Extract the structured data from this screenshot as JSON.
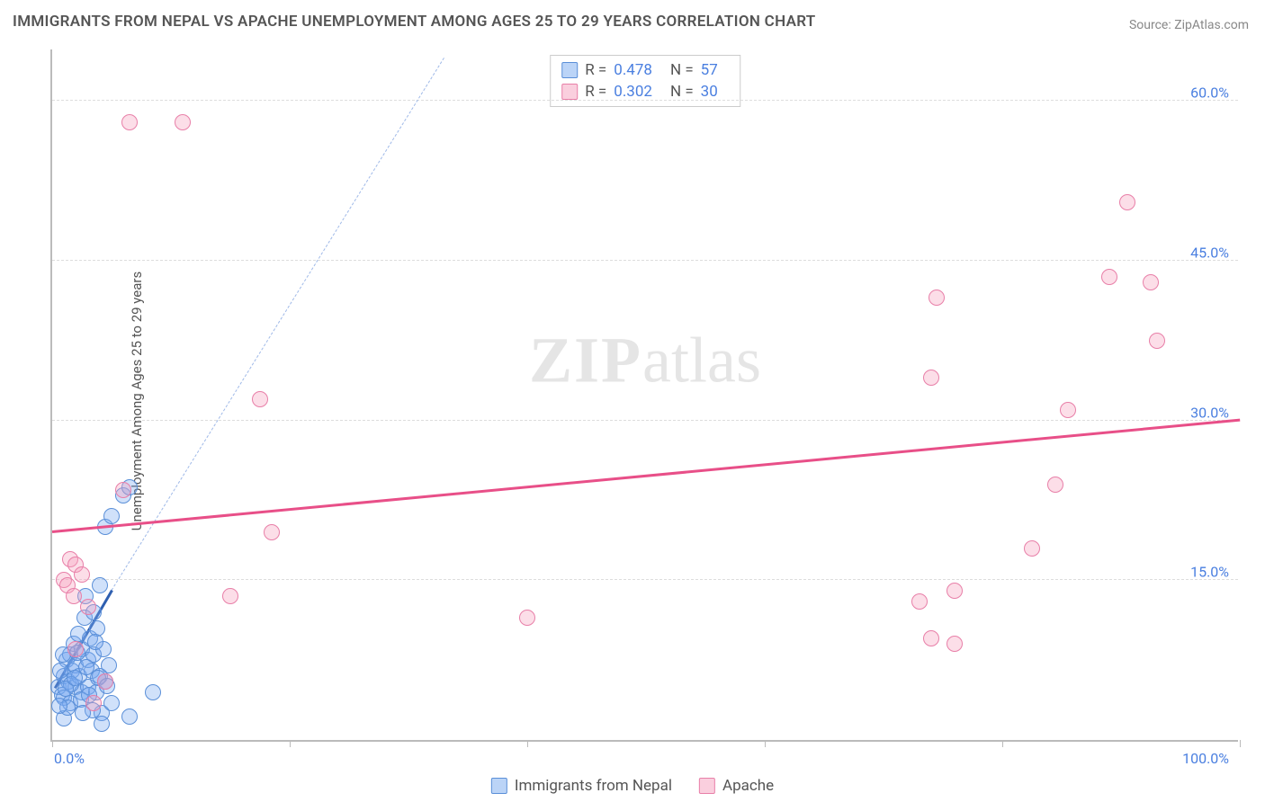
{
  "chart": {
    "type": "scatter",
    "title": "IMMIGRANTS FROM NEPAL VS APACHE UNEMPLOYMENT AMONG AGES 25 TO 29 YEARS CORRELATION CHART",
    "source": "Source: ZipAtlas.com",
    "y_label": "Unemployment Among Ages 25 to 29 years",
    "watermark": {
      "zip": "ZIP",
      "atlas": "atlas"
    },
    "xlim": [
      0,
      100
    ],
    "ylim": [
      0,
      65
    ],
    "x_ticks": [
      0,
      20,
      40,
      60,
      80,
      100
    ],
    "x_tick_labels": {
      "left": "0.0%",
      "right": "100.0%"
    },
    "y_ticks": [
      15,
      30,
      45,
      60
    ],
    "y_tick_labels": [
      "15.0%",
      "30.0%",
      "45.0%",
      "60.0%"
    ],
    "background_color": "#ffffff",
    "grid_color": "#dddddd",
    "axis_color": "#bbbbbb",
    "tick_label_color": "#4a7fe0",
    "title_color": "#555555",
    "series": [
      {
        "name": "Immigrants from Nepal",
        "marker_color": "#5a8fd8",
        "marker_fill": "rgba(120,170,240,0.35)",
        "reg_color": "#2f5fb0",
        "reg_dash_color": "#9fb9e8",
        "R": "0.478",
        "N": "57",
        "reg_solid": {
          "x1": 0.2,
          "y1": 4.8,
          "x2": 5.0,
          "y2": 14.0
        },
        "reg_dash": {
          "x1": 5.0,
          "y1": 14.0,
          "x2": 33.0,
          "y2": 64.0
        },
        "points": [
          [
            0.5,
            5.0
          ],
          [
            0.8,
            4.2
          ],
          [
            1.0,
            6.0
          ],
          [
            1.0,
            4.0
          ],
          [
            1.2,
            7.5
          ],
          [
            1.4,
            5.5
          ],
          [
            1.5,
            8.0
          ],
          [
            1.5,
            3.5
          ],
          [
            1.7,
            6.5
          ],
          [
            1.8,
            9.0
          ],
          [
            2.0,
            7.0
          ],
          [
            2.0,
            5.0
          ],
          [
            2.2,
            10.0
          ],
          [
            2.3,
            6.0
          ],
          [
            2.5,
            8.5
          ],
          [
            2.5,
            4.5
          ],
          [
            2.7,
            11.5
          ],
          [
            2.8,
            13.5
          ],
          [
            3.0,
            7.5
          ],
          [
            3.0,
            5.0
          ],
          [
            3.2,
            9.5
          ],
          [
            3.3,
            6.5
          ],
          [
            3.5,
            12.0
          ],
          [
            3.5,
            8.0
          ],
          [
            3.7,
            4.5
          ],
          [
            3.8,
            10.5
          ],
          [
            4.0,
            14.5
          ],
          [
            4.0,
            6.0
          ],
          [
            4.2,
            2.5
          ],
          [
            4.3,
            8.5
          ],
          [
            4.5,
            20.0
          ],
          [
            4.5,
            5.5
          ],
          [
            4.8,
            7.0
          ],
          [
            5.0,
            21.0
          ],
          [
            5.0,
            3.5
          ],
          [
            1.0,
            2.0
          ],
          [
            1.3,
            3.0
          ],
          [
            0.7,
            6.5
          ],
          [
            2.4,
            3.8
          ],
          [
            3.1,
            4.2
          ],
          [
            0.9,
            8.0
          ],
          [
            1.6,
            5.2
          ],
          [
            2.9,
            6.8
          ],
          [
            3.6,
            9.2
          ],
          [
            1.1,
            4.8
          ],
          [
            0.6,
            3.2
          ],
          [
            2.1,
            8.2
          ],
          [
            1.9,
            5.8
          ],
          [
            3.9,
            5.8
          ],
          [
            4.6,
            5.1
          ],
          [
            6.0,
            23.0
          ],
          [
            6.5,
            23.7
          ],
          [
            6.5,
            2.2
          ],
          [
            8.5,
            4.5
          ],
          [
            4.2,
            1.5
          ],
          [
            3.4,
            2.8
          ],
          [
            2.6,
            2.5
          ]
        ]
      },
      {
        "name": "Apache",
        "marker_color": "#e87fa8",
        "marker_fill": "rgba(245,160,190,0.35)",
        "reg_color": "#e84f88",
        "R": "0.302",
        "N": "30",
        "reg_solid": {
          "x1": 0.0,
          "y1": 19.5,
          "x2": 100.0,
          "y2": 30.0
        },
        "points": [
          [
            1.0,
            15.0
          ],
          [
            1.3,
            14.5
          ],
          [
            1.5,
            17.0
          ],
          [
            1.8,
            13.5
          ],
          [
            2.0,
            16.5
          ],
          [
            2.5,
            15.5
          ],
          [
            3.0,
            12.5
          ],
          [
            6.5,
            58.0
          ],
          [
            11.0,
            58.0
          ],
          [
            6.0,
            23.5
          ],
          [
            15.0,
            13.5
          ],
          [
            17.5,
            32.0
          ],
          [
            18.5,
            19.5
          ],
          [
            2.0,
            8.5
          ],
          [
            3.5,
            3.5
          ],
          [
            73.0,
            13.0
          ],
          [
            76.0,
            14.0
          ],
          [
            74.5,
            41.5
          ],
          [
            74.0,
            34.0
          ],
          [
            76.0,
            9.0
          ],
          [
            74.0,
            9.5
          ],
          [
            82.5,
            18.0
          ],
          [
            84.5,
            24.0
          ],
          [
            85.5,
            31.0
          ],
          [
            89.0,
            43.5
          ],
          [
            90.5,
            50.5
          ],
          [
            92.5,
            43.0
          ],
          [
            93.0,
            37.5
          ],
          [
            40.0,
            11.5
          ],
          [
            4.5,
            5.5
          ]
        ]
      }
    ],
    "legend": {
      "stats": [
        {
          "swatch": "blue",
          "R_label": "R =",
          "R": "0.478",
          "N_label": "N =",
          "N": "57"
        },
        {
          "swatch": "pink",
          "R_label": "R =",
          "R": "0.302",
          "N_label": "N =",
          "N": "30"
        }
      ],
      "bottom": [
        {
          "swatch": "blue",
          "label": "Immigrants from Nepal"
        },
        {
          "swatch": "pink",
          "label": "Apache"
        }
      ]
    }
  }
}
